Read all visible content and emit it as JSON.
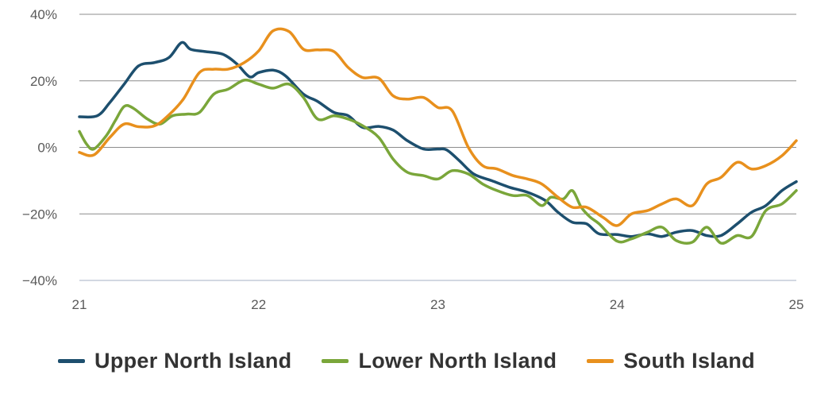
{
  "chart_data": {
    "type": "line",
    "title": "",
    "xlabel": "",
    "ylabel": "",
    "xlim": [
      21,
      25
    ],
    "ylim": [
      -40,
      40
    ],
    "x_ticks": [
      21,
      22,
      23,
      24,
      25
    ],
    "x_tick_labels": [
      "21",
      "22",
      "23",
      "24",
      "25"
    ],
    "y_ticks": [
      -40,
      -20,
      0,
      20,
      40
    ],
    "y_tick_labels": [
      "−40%",
      "−20%",
      "0%",
      "20%",
      "40%"
    ],
    "grid": "horizontal",
    "legend_position": "bottom",
    "series": [
      {
        "name": "Upper North Island",
        "color": "#1d4f6e",
        "points": [
          [
            21.0,
            9.2
          ],
          [
            21.1,
            9.5
          ],
          [
            21.17,
            13.5
          ],
          [
            21.25,
            19
          ],
          [
            21.33,
            24.5
          ],
          [
            21.42,
            25.5
          ],
          [
            21.5,
            27
          ],
          [
            21.57,
            31.5
          ],
          [
            21.62,
            29.5
          ],
          [
            21.7,
            28.8
          ],
          [
            21.8,
            28
          ],
          [
            21.88,
            25
          ],
          [
            21.95,
            21.2
          ],
          [
            22.0,
            22.5
          ],
          [
            22.08,
            23.2
          ],
          [
            22.15,
            21.5
          ],
          [
            22.25,
            16
          ],
          [
            22.33,
            13.8
          ],
          [
            22.42,
            10.5
          ],
          [
            22.5,
            9.5
          ],
          [
            22.58,
            6
          ],
          [
            22.67,
            6.3
          ],
          [
            22.75,
            5.2
          ],
          [
            22.83,
            2
          ],
          [
            22.92,
            -0.5
          ],
          [
            23.0,
            -0.5
          ],
          [
            23.05,
            -0.8
          ],
          [
            23.12,
            -4
          ],
          [
            23.2,
            -8
          ],
          [
            23.3,
            -10
          ],
          [
            23.4,
            -12
          ],
          [
            23.5,
            -13.5
          ],
          [
            23.6,
            -16
          ],
          [
            23.67,
            -19.5
          ],
          [
            23.75,
            -22.5
          ],
          [
            23.83,
            -23
          ],
          [
            23.9,
            -26
          ],
          [
            24.0,
            -26.2
          ],
          [
            24.08,
            -26.8
          ],
          [
            24.17,
            -26
          ],
          [
            24.25,
            -26.8
          ],
          [
            24.33,
            -25.5
          ],
          [
            24.42,
            -25
          ],
          [
            24.5,
            -26.5
          ],
          [
            24.58,
            -26.5
          ],
          [
            24.67,
            -23
          ],
          [
            24.75,
            -19.5
          ],
          [
            24.83,
            -17.5
          ],
          [
            24.92,
            -13
          ],
          [
            25.0,
            -10.3
          ]
        ]
      },
      {
        "name": "Lower North Island",
        "color": "#7aa63a",
        "points": [
          [
            21.0,
            4.8
          ],
          [
            21.04,
            1
          ],
          [
            21.08,
            -0.5
          ],
          [
            21.15,
            3.5
          ],
          [
            21.2,
            8
          ],
          [
            21.25,
            12.3
          ],
          [
            21.3,
            11.8
          ],
          [
            21.38,
            8.5
          ],
          [
            21.45,
            7
          ],
          [
            21.52,
            9.5
          ],
          [
            21.6,
            10
          ],
          [
            21.67,
            10.5
          ],
          [
            21.75,
            16
          ],
          [
            21.83,
            17.5
          ],
          [
            21.92,
            20.2
          ],
          [
            22.0,
            19
          ],
          [
            22.08,
            17.8
          ],
          [
            22.17,
            19
          ],
          [
            22.25,
            15
          ],
          [
            22.33,
            8.5
          ],
          [
            22.42,
            9.5
          ],
          [
            22.5,
            8.5
          ],
          [
            22.58,
            6.5
          ],
          [
            22.67,
            3
          ],
          [
            22.75,
            -3.5
          ],
          [
            22.83,
            -7.5
          ],
          [
            22.92,
            -8.5
          ],
          [
            23.0,
            -9.5
          ],
          [
            23.08,
            -7
          ],
          [
            23.17,
            -8
          ],
          [
            23.25,
            -11
          ],
          [
            23.33,
            -13
          ],
          [
            23.42,
            -14.5
          ],
          [
            23.5,
            -14.5
          ],
          [
            23.58,
            -17.5
          ],
          [
            23.63,
            -15
          ],
          [
            23.7,
            -15.5
          ],
          [
            23.75,
            -13
          ],
          [
            23.8,
            -18
          ],
          [
            23.85,
            -21
          ],
          [
            23.9,
            -23
          ],
          [
            24.0,
            -28.2
          ],
          [
            24.08,
            -27.5
          ],
          [
            24.17,
            -25.5
          ],
          [
            24.25,
            -24
          ],
          [
            24.33,
            -28
          ],
          [
            24.42,
            -28.5
          ],
          [
            24.5,
            -24
          ],
          [
            24.58,
            -28.8
          ],
          [
            24.67,
            -26.5
          ],
          [
            24.75,
            -26.8
          ],
          [
            24.83,
            -19
          ],
          [
            24.92,
            -17
          ],
          [
            25.0,
            -13
          ]
        ]
      },
      {
        "name": "South Island",
        "color": "#e8901d",
        "points": [
          [
            21.0,
            -1.5
          ],
          [
            21.08,
            -2.3
          ],
          [
            21.17,
            3
          ],
          [
            21.25,
            7
          ],
          [
            21.33,
            6.2
          ],
          [
            21.42,
            6.5
          ],
          [
            21.5,
            9.8
          ],
          [
            21.58,
            14.5
          ],
          [
            21.67,
            22.5
          ],
          [
            21.75,
            23.5
          ],
          [
            21.83,
            23.5
          ],
          [
            21.92,
            25.5
          ],
          [
            22.0,
            29
          ],
          [
            22.08,
            35
          ],
          [
            22.17,
            34.8
          ],
          [
            22.25,
            29.5
          ],
          [
            22.33,
            29.3
          ],
          [
            22.42,
            28.8
          ],
          [
            22.5,
            24
          ],
          [
            22.58,
            21
          ],
          [
            22.67,
            20.8
          ],
          [
            22.75,
            15.5
          ],
          [
            22.83,
            14.5
          ],
          [
            22.92,
            15
          ],
          [
            23.0,
            12
          ],
          [
            23.08,
            11
          ],
          [
            23.17,
            0
          ],
          [
            23.25,
            -5.5
          ],
          [
            23.33,
            -6.5
          ],
          [
            23.42,
            -8.5
          ],
          [
            23.5,
            -9.5
          ],
          [
            23.58,
            -11
          ],
          [
            23.67,
            -15
          ],
          [
            23.75,
            -18
          ],
          [
            23.83,
            -18
          ],
          [
            23.92,
            -21
          ],
          [
            24.0,
            -23.5
          ],
          [
            24.08,
            -20
          ],
          [
            24.17,
            -19
          ],
          [
            24.25,
            -17
          ],
          [
            24.33,
            -15.5
          ],
          [
            24.42,
            -17.5
          ],
          [
            24.5,
            -11
          ],
          [
            24.58,
            -9
          ],
          [
            24.67,
            -4.5
          ],
          [
            24.75,
            -6.5
          ],
          [
            24.83,
            -5.5
          ],
          [
            24.92,
            -2.5
          ],
          [
            25.0,
            2
          ]
        ]
      }
    ]
  }
}
